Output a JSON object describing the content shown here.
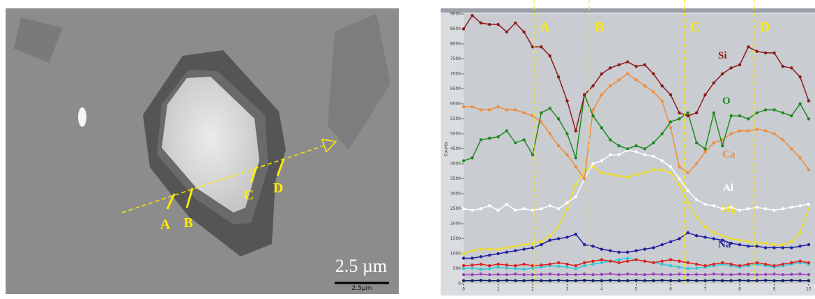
{
  "image": {
    "labels": [
      "A",
      "B",
      "C",
      "D"
    ],
    "scale_text": "2.5 µm",
    "scale_bar_label": "2.5µm"
  },
  "chart_data": {
    "type": "line",
    "y_label": "Counts",
    "x": [
      0,
      0.25,
      0.5,
      0.75,
      1,
      1.25,
      1.5,
      1.75,
      2,
      2.25,
      2.5,
      2.75,
      3,
      3.25,
      3.5,
      3.75,
      4,
      4.25,
      4.5,
      4.75,
      5,
      5.25,
      5.5,
      5.75,
      6,
      6.25,
      6.5,
      6.75,
      7,
      7.25,
      7.5,
      7.75,
      8,
      8.25,
      8.5,
      8.75,
      9,
      9.25,
      9.5,
      9.75,
      10
    ],
    "series": [
      {
        "name": "Si",
        "color": "#8b1a1a",
        "values": [
          8500,
          8950,
          8700,
          8650,
          8650,
          8400,
          8700,
          8400,
          7900,
          7900,
          7600,
          6900,
          6100,
          5100,
          6300,
          6600,
          7000,
          7200,
          7300,
          7400,
          7250,
          7300,
          7000,
          6600,
          6300,
          5700,
          5600,
          5700,
          6300,
          6700,
          7000,
          7200,
          7300,
          7900,
          7750,
          7700,
          7700,
          7250,
          7200,
          6900,
          6100
        ]
      },
      {
        "name": "O",
        "color": "#1e8a1e",
        "values": [
          4100,
          4200,
          4800,
          4850,
          4900,
          5100,
          4700,
          4800,
          4300,
          5700,
          5850,
          5500,
          5000,
          4200,
          6300,
          5600,
          5200,
          4800,
          4600,
          4500,
          4600,
          4500,
          4700,
          5000,
          5400,
          5500,
          5700,
          4700,
          4500,
          5700,
          4600,
          5600,
          5600,
          5500,
          5700,
          5800,
          5800,
          5700,
          5600,
          6000,
          5500
        ]
      },
      {
        "name": "Ca",
        "color": "#f08c3c",
        "values": [
          5900,
          5900,
          5800,
          5800,
          5900,
          5800,
          5800,
          5700,
          5600,
          5400,
          5000,
          4600,
          4300,
          3900,
          3500,
          5800,
          6300,
          6600,
          6800,
          7000,
          6800,
          6600,
          6400,
          6100,
          5200,
          3900,
          3700,
          4000,
          4400,
          4700,
          4800,
          5000,
          5100,
          5100,
          5150,
          5100,
          5000,
          4800,
          4500,
          4200,
          3800
        ]
      },
      {
        "name": "Al",
        "color": "#ffffff",
        "values": [
          2500,
          2450,
          2500,
          2600,
          2450,
          2650,
          2450,
          2500,
          2450,
          2500,
          2600,
          2500,
          2700,
          2900,
          3500,
          4000,
          4100,
          4300,
          4300,
          4450,
          4400,
          4300,
          4250,
          4100,
          3900,
          3500,
          3100,
          2800,
          2650,
          2600,
          2500,
          2550,
          2450,
          2500,
          2550,
          2500,
          2450,
          2500,
          2550,
          2600,
          2650
        ]
      },
      {
        "name": "Mg",
        "color": "#f0e020",
        "values": [
          1000,
          1100,
          1150,
          1150,
          1150,
          1200,
          1250,
          1300,
          1350,
          1400,
          1600,
          1900,
          2500,
          3300,
          3800,
          3900,
          3700,
          3650,
          3600,
          3550,
          3650,
          3700,
          3800,
          3800,
          3700,
          3300,
          2700,
          2200,
          1900,
          1700,
          1600,
          1500,
          1450,
          1400,
          1350,
          1350,
          1300,
          1300,
          1400,
          1700,
          2500
        ]
      },
      {
        "name": "Na",
        "color": "#2020a0",
        "values": [
          850,
          850,
          900,
          950,
          1000,
          1050,
          1100,
          1150,
          1200,
          1300,
          1450,
          1500,
          1550,
          1650,
          1300,
          1250,
          1150,
          1100,
          1050,
          1050,
          1100,
          1150,
          1200,
          1300,
          1400,
          1500,
          1700,
          1600,
          1550,
          1500,
          1450,
          1350,
          1300,
          1250,
          1250,
          1200,
          1200,
          1200,
          1200,
          1250,
          1300
        ]
      },
      {
        "color": "#e02020",
        "values": [
          600,
          620,
          650,
          600,
          650,
          620,
          600,
          650,
          600,
          620,
          650,
          700,
          650,
          600,
          700,
          750,
          800,
          750,
          700,
          750,
          800,
          750,
          700,
          750,
          800,
          750,
          700,
          650,
          600,
          650,
          700,
          650,
          600,
          650,
          700,
          650,
          600,
          650,
          700,
          750,
          700
        ]
      },
      {
        "color": "#30c8d8",
        "values": [
          500,
          520,
          480,
          500,
          550,
          520,
          500,
          480,
          520,
          550,
          600,
          580,
          550,
          500,
          600,
          650,
          700,
          750,
          800,
          850,
          800,
          750,
          700,
          650,
          600,
          550,
          500,
          520,
          550,
          600,
          650,
          600,
          550,
          600,
          650,
          600,
          550,
          600,
          650,
          700,
          650
        ]
      },
      {
        "color": "#a040c0",
        "values": [
          300,
          300,
          320,
          300,
          310,
          300,
          320,
          300,
          300,
          310,
          320,
          300,
          310,
          300,
          320,
          300,
          310,
          330,
          300,
          320,
          310,
          300,
          320,
          310,
          300,
          320,
          300,
          310,
          300,
          320,
          310,
          300,
          320,
          310,
          300,
          310,
          320,
          300,
          310,
          320,
          300
        ]
      },
      {
        "color": "#102060",
        "values": [
          100,
          100,
          110,
          100,
          100,
          110,
          100,
          100,
          110,
          100,
          100,
          110,
          100,
          100,
          110,
          100,
          100,
          110,
          100,
          100,
          110,
          100,
          100,
          110,
          100,
          100,
          110,
          100,
          100,
          110,
          100,
          100,
          110,
          100,
          100,
          110,
          100,
          100,
          110,
          100,
          100
        ]
      }
    ],
    "markers": [
      {
        "label": "A",
        "x": 2.04
      },
      {
        "label": "B",
        "x": 3.64
      },
      {
        "label": "C",
        "x": 6.4
      },
      {
        "label": "D",
        "x": 8.42
      }
    ],
    "xlim": [
      0,
      10
    ],
    "ylim": [
      0,
      9000
    ],
    "xticks": [
      0,
      1,
      2,
      3,
      4,
      5,
      6,
      7,
      8,
      9,
      10
    ],
    "yticks": [
      0,
      500,
      1000,
      1500,
      2000,
      2500,
      3000,
      3500,
      4000,
      4500,
      5000,
      5500,
      6000,
      6500,
      7000,
      7500,
      8000,
      8500,
      9000
    ]
  }
}
